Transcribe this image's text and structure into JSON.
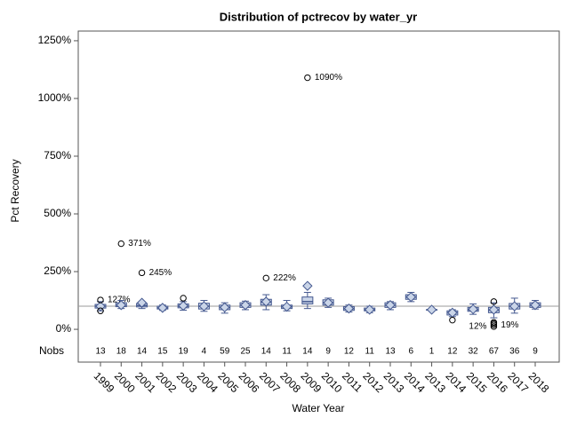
{
  "chart_data": {
    "type": "box",
    "title": "Distribution of pctrecov by water_yr",
    "x_label": "Water Year",
    "y_label": "Pct Recovery",
    "categories": [
      "1999",
      "2000",
      "2001",
      "2002",
      "2003",
      "2004",
      "2005",
      "2006",
      "2007",
      "2008",
      "2009",
      "2010",
      "2011",
      "2012",
      "2013",
      "2014",
      "2013",
      "2014",
      "2015",
      "2016",
      "2017",
      "2018"
    ],
    "nobs_label": "Nobs",
    "nobs": [
      13,
      18,
      14,
      15,
      19,
      4,
      59,
      25,
      14,
      11,
      14,
      9,
      12,
      11,
      13,
      6,
      1,
      12,
      32,
      67,
      36,
      9
    ],
    "ylim": [
      -142,
      1292
    ],
    "yticks": [
      {
        "value": 0,
        "label": "0%"
      },
      {
        "value": 250,
        "label": "250%"
      },
      {
        "value": 500,
        "label": "500%"
      },
      {
        "value": 750,
        "label": "750%"
      },
      {
        "value": 1000,
        "label": "1000%"
      },
      {
        "value": 1250,
        "label": "1250%"
      }
    ],
    "reference_line": 100,
    "box_color": "#cad5e8",
    "edge_color": "#44588f",
    "boxes": [
      {
        "low": 80,
        "q1": 92,
        "median": 100,
        "q3": 108,
        "high": 120,
        "mean": 100,
        "outliers": [
          {
            "value": 127,
            "label": "127%"
          },
          80
        ]
      },
      {
        "low": 90,
        "q1": 98,
        "median": 105,
        "q3": 115,
        "high": 125,
        "mean": 105,
        "outliers": [
          {
            "value": 371,
            "label": "371%"
          }
        ]
      },
      {
        "low": 90,
        "q1": 97,
        "median": 103,
        "q3": 112,
        "high": 120,
        "mean": 115,
        "outliers": [
          {
            "value": 245,
            "label": "245%"
          }
        ]
      },
      {
        "low": 82,
        "q1": 88,
        "median": 93,
        "q3": 100,
        "high": 105,
        "mean": 93,
        "outliers": []
      },
      {
        "low": 83,
        "q1": 93,
        "median": 100,
        "q3": 110,
        "high": 120,
        "mean": 102,
        "outliers": [
          135
        ]
      },
      {
        "low": 78,
        "q1": 88,
        "median": 100,
        "q3": 113,
        "high": 125,
        "mean": 100,
        "outliers": []
      },
      {
        "low": 70,
        "q1": 85,
        "median": 95,
        "q3": 105,
        "high": 115,
        "mean": 95,
        "outliers": []
      },
      {
        "low": 85,
        "q1": 95,
        "median": 105,
        "q3": 115,
        "high": 122,
        "mean": 105,
        "outliers": []
      },
      {
        "low": 85,
        "q1": 105,
        "median": 118,
        "q3": 130,
        "high": 150,
        "mean": 120,
        "outliers": [
          {
            "value": 222,
            "label": "222%"
          }
        ]
      },
      {
        "low": 80,
        "q1": 90,
        "median": 98,
        "q3": 105,
        "high": 125,
        "mean": 98,
        "outliers": []
      },
      {
        "low": 90,
        "q1": 110,
        "median": 120,
        "q3": 140,
        "high": 160,
        "mean": 188,
        "outliers": [
          {
            "value": 1090,
            "label": "1090%"
          }
        ]
      },
      {
        "low": 95,
        "q1": 105,
        "median": 115,
        "q3": 128,
        "high": 135,
        "mean": 115,
        "outliers": []
      },
      {
        "low": 75,
        "q1": 82,
        "median": 90,
        "q3": 98,
        "high": 105,
        "mean": 90,
        "outliers": []
      },
      {
        "low": 72,
        "q1": 80,
        "median": 85,
        "q3": 92,
        "high": 100,
        "mean": 85,
        "outliers": []
      },
      {
        "low": 85,
        "q1": 95,
        "median": 105,
        "q3": 115,
        "high": 120,
        "mean": 105,
        "outliers": []
      },
      {
        "low": 120,
        "q1": 130,
        "median": 140,
        "q3": 150,
        "high": 160,
        "mean": 140,
        "outliers": []
      },
      {
        "low": 85,
        "q1": 85,
        "median": 85,
        "q3": 85,
        "high": 85,
        "mean": 85,
        "outliers": []
      },
      {
        "low": 55,
        "q1": 62,
        "median": 72,
        "q3": 80,
        "high": 85,
        "mean": 72,
        "outliers": [
          40
        ]
      },
      {
        "low": 65,
        "q1": 78,
        "median": 85,
        "q3": 95,
        "high": 110,
        "mean": 87,
        "outliers": []
      },
      {
        "low": 50,
        "q1": 72,
        "median": 83,
        "q3": 95,
        "high": 115,
        "mean": 85,
        "outliers": [
          120,
          {
            "value": 19,
            "label": "19%"
          },
          {
            "value": 12,
            "label": "12%"
          },
          25,
          30
        ]
      },
      {
        "low": 70,
        "q1": 88,
        "median": 100,
        "q3": 112,
        "high": 135,
        "mean": 100,
        "outliers": []
      },
      {
        "low": 88,
        "q1": 95,
        "median": 105,
        "q3": 115,
        "high": 125,
        "mean": 105,
        "outliers": []
      }
    ]
  }
}
